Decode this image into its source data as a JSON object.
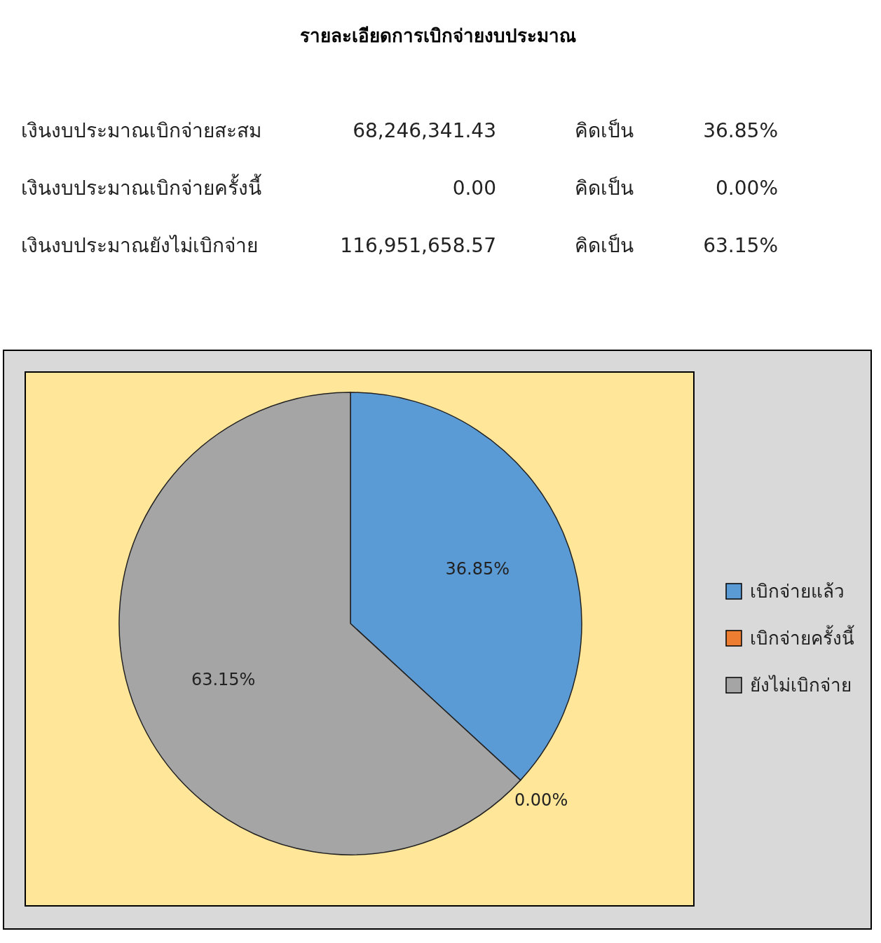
{
  "chart_data": [
    {
      "type": "other",
      "title": "รายละเอียดการเบิกจ่ายงบประมาณ",
      "annotations": [
        "เงินงบประมาณเบิกจ่ายสะสม",
        "68,246,341.43",
        "คิดเป็น",
        "36.85%",
        "เงินงบประมาณเบิกจ่ายครั้งนี้",
        "0.00",
        "คิดเป็น",
        "0.00%",
        "เงินงบประมาณยังไม่เบิกจ่าย",
        "116,951,658.57",
        "คิดเป็น",
        "63.15%"
      ]
    },
    {
      "type": "pie",
      "categories": [
        "เบิกจ่ายแล้ว",
        "เบิกจ่ายครั้งนี้",
        "ยังไม่เบิกจ่าย"
      ],
      "values": [
        36.85,
        0.0,
        63.15
      ],
      "colors": [
        "#5b9bd5",
        "#ed7d31",
        "#a5a5a5"
      ],
      "value_labels": [
        "36.85%",
        "0.00%",
        "63.15%"
      ],
      "legend": "right"
    }
  ]
}
